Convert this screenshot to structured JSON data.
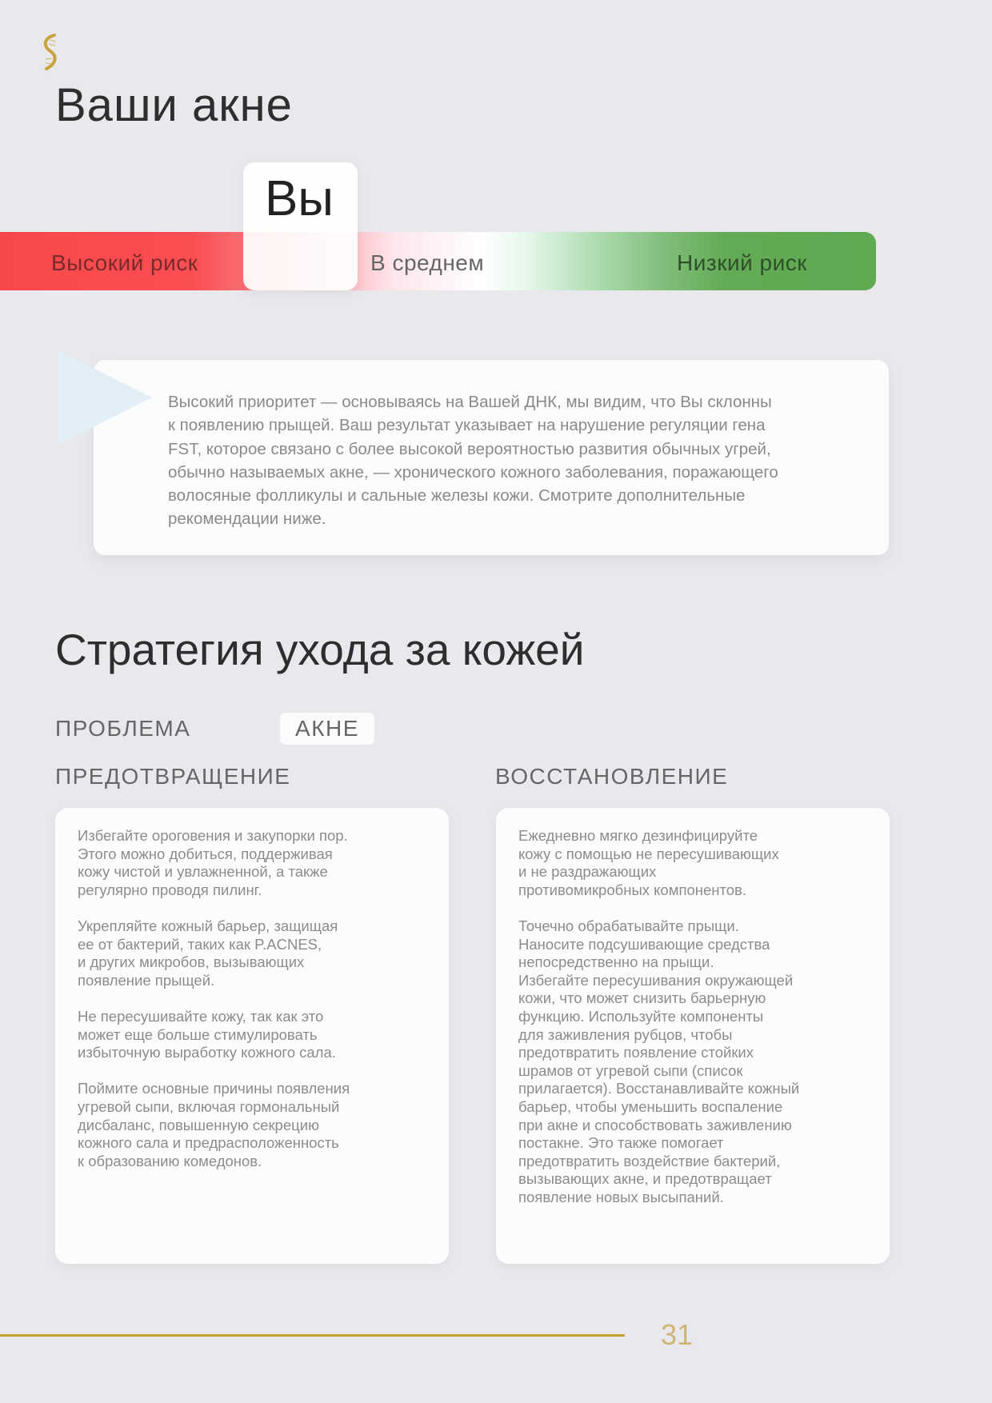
{
  "header": {
    "title": "Ваши акне",
    "logo_icon": "dna-helix-icon"
  },
  "risk_scale": {
    "marker_label": "Вы",
    "labels": {
      "high": "Высокий риск",
      "average": "В среднем",
      "low": "Низкий риск"
    },
    "position": "high-to-average boundary",
    "colors": {
      "high": "#f9484c",
      "average": "#ffffff",
      "low": "#60a953"
    }
  },
  "summary": {
    "text": "Высокий приоритет — основываясь на Вашей ДНК, мы видим, что Вы склонны\nк появлению прыщей. Ваш результат указывает на нарушение регуляции гена\nFST, которое связано с более высокой вероятностью развития обычных угрей,\nобычно называемых акне, — хронического кожного заболевания, поражающего\nволосяные фолликулы и сальные железы кожи. Смотрите дополнительные\nрекомендации ниже."
  },
  "strategy": {
    "title": "Стратегия ухода за кожей",
    "problem_label": "ПРОБЛЕМА",
    "problem_value": "АКНЕ",
    "prevention": {
      "title": "ПРЕДОТВРАЩЕНИЕ",
      "paragraphs": [
        "Избегайте ороговения и закупорки пор.\nЭтого можно добиться, поддерживая\nкожу чистой и увлажненной, а также\nрегулярно проводя пилинг.",
        "Укрепляйте кожный барьер, защищая\nее от бактерий, таких как P.ACNES,\nи других микробов, вызывающих\nпоявление прыщей.",
        "Не пересушивайте кожу, так как это\nможет еще больше стимулировать\nизбыточную выработку кожного сала.",
        "Поймите основные причины появления\nугревой сыпи, включая гормональный\nдисбаланс, повышенную секрецию\nкожного сала и предрасположенность\nк образованию комедонов."
      ]
    },
    "restoration": {
      "title": "ВОССТАНОВЛЕНИЕ",
      "paragraphs": [
        "Ежедневно мягко дезинфицируйте\nкожу с помощью не пересушивающих\nи не раздражающих\nпротивомикробных компонентов.",
        "Точечно обрабатывайте прыщи.\nНаносите подсушивающие средства\nнепосредственно на прыщи.\nИзбегайте пересушивания окружающей\nкожи, что может снизить барьерную\nфункцию. Используйте компоненты\nдля заживления рубцов, чтобы\nпредотвратить появление стойких\nшрамов от угревой сыпи (список\nприлагается). Восстанавливайте кожный\nбарьер, чтобы уменьшить воспаление\nпри акне и способствовать заживлению\nпостакне. Это также помогает\nпредотвратить воздействие бактерий,\nвызывающих акне, и предотвращает\nпоявление новых высыпаний."
      ]
    }
  },
  "footer": {
    "page_number": "31",
    "accent_color": "#c4a02c"
  }
}
